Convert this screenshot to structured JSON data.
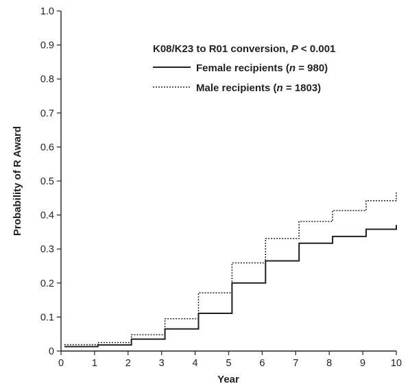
{
  "chart_data": {
    "type": "line",
    "step": true,
    "title": "",
    "xlabel": "Year",
    "ylabel": "Probability of R Award",
    "xlim": [
      0,
      10
    ],
    "ylim": [
      0,
      1.0
    ],
    "xticks": [
      0,
      1,
      2,
      3,
      4,
      5,
      6,
      7,
      8,
      9,
      10
    ],
    "xtick_labels": [
      "0",
      "1",
      "2",
      "3",
      "4",
      "5",
      "6",
      "7",
      "8",
      "9",
      "10"
    ],
    "yticks": [
      0,
      0.1,
      0.2,
      0.3,
      0.4,
      0.5,
      0.6,
      0.7,
      0.8,
      0.9,
      1.0
    ],
    "ytick_labels": [
      "0",
      "0.1",
      "0.2",
      "0.3",
      "0.4",
      "0.5",
      "0.6",
      "0.7",
      "0.8",
      "0.9",
      "1.0"
    ],
    "grid": false,
    "legend": {
      "placement": "top-right",
      "title_prefix": "K08/K23 to R01 conversion, ",
      "title_p": "P",
      "title_suffix": " < 0.001",
      "entries": [
        {
          "prefix": "Female recipients (",
          "n": "n",
          "suffix": " = 980)",
          "style": "solid"
        },
        {
          "prefix": "Male recipients (",
          "n": "n",
          "suffix": " = 1803)",
          "style": "dotted"
        }
      ]
    },
    "series": [
      {
        "name": "Female recipients (n = 980)",
        "style": "solid",
        "color": "#231f20",
        "x": [
          0.1,
          1.1,
          2.1,
          3.1,
          4.1,
          5.1,
          6.1,
          7.1,
          8.1,
          9.1,
          10.0
        ],
        "y": [
          0.013,
          0.018,
          0.035,
          0.065,
          0.111,
          0.2,
          0.265,
          0.317,
          0.337,
          0.358,
          0.371
        ]
      },
      {
        "name": "Male recipients (n = 1803)",
        "style": "dotted",
        "color": "#231f20",
        "x": [
          0.1,
          1.1,
          2.1,
          3.1,
          4.1,
          5.1,
          6.1,
          7.1,
          8.1,
          9.1,
          10.0
        ],
        "y": [
          0.019,
          0.025,
          0.048,
          0.095,
          0.171,
          0.259,
          0.331,
          0.381,
          0.413,
          0.442,
          0.467
        ]
      }
    ]
  }
}
